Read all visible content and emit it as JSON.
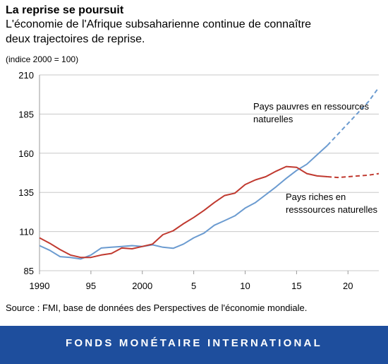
{
  "header": {
    "title": "La reprise se poursuit",
    "subtitle": "L'économie de l'Afrique subsaharienne continue de connaître deux trajectoires de reprise.",
    "unit": "(indice 2000 = 100)"
  },
  "source": "Source : FMI, base de données des Perspectives de l'économie mondiale.",
  "footer": "FONDS MONÉTAIRE INTERNATIONAL",
  "chart_data": {
    "type": "line",
    "ylim": [
      85,
      210
    ],
    "xlim": [
      1990,
      2023
    ],
    "yticks": [
      85,
      110,
      135,
      160,
      185,
      210
    ],
    "xticks": [
      1990,
      1995,
      2000,
      2005,
      2010,
      2015,
      2020
    ],
    "xtick_labels": [
      "1990",
      "95",
      "2000",
      "5",
      "10",
      "15",
      "20"
    ],
    "grid": true,
    "series": [
      {
        "name": "Pays pauvres en ressources naturelles",
        "label_lines": [
          "Pays pauvres en ressources",
          "naturelles"
        ],
        "color": "#6b9bd0",
        "x": [
          1990,
          1991,
          1992,
          1993,
          1994,
          1995,
          1996,
          1997,
          1998,
          1999,
          2000,
          2001,
          2002,
          2003,
          2004,
          2005,
          2006,
          2007,
          2008,
          2009,
          2010,
          2011,
          2012,
          2013,
          2014,
          2015,
          2016,
          2017,
          2018,
          2019,
          2020,
          2021,
          2022,
          2023
        ],
        "values": [
          101,
          98,
          94,
          93.5,
          92.5,
          95,
          99.5,
          100,
          100.5,
          101,
          100.5,
          101.5,
          100,
          99.3,
          102,
          106,
          109,
          114,
          117,
          120,
          125,
          128.5,
          133.5,
          138.5,
          144,
          149,
          153,
          159,
          165,
          172,
          179,
          186,
          193,
          202
        ],
        "dashed_from": 2018
      },
      {
        "name": "Pays riches en resssources naturelles",
        "label_lines": [
          "Pays riches en",
          "resssources naturelles"
        ],
        "color": "#c0392f",
        "x": [
          1990,
          1991,
          1992,
          1993,
          1994,
          1995,
          1996,
          1997,
          1998,
          1999,
          2000,
          2001,
          2002,
          2003,
          2004,
          2005,
          2006,
          2007,
          2008,
          2009,
          2010,
          2011,
          2012,
          2013,
          2014,
          2015,
          2016,
          2017,
          2018,
          2019,
          2020,
          2021,
          2022,
          2023
        ],
        "values": [
          106,
          102.5,
          98.5,
          95,
          93.5,
          93.5,
          95,
          96,
          99.5,
          99,
          100.5,
          102,
          108,
          110.5,
          115,
          119,
          123.5,
          128.5,
          133,
          134.5,
          140,
          143,
          145,
          148.5,
          151.5,
          151,
          147,
          145.5,
          145,
          144.5,
          145,
          145.5,
          146,
          147
        ],
        "dashed_from": 2018
      }
    ]
  }
}
